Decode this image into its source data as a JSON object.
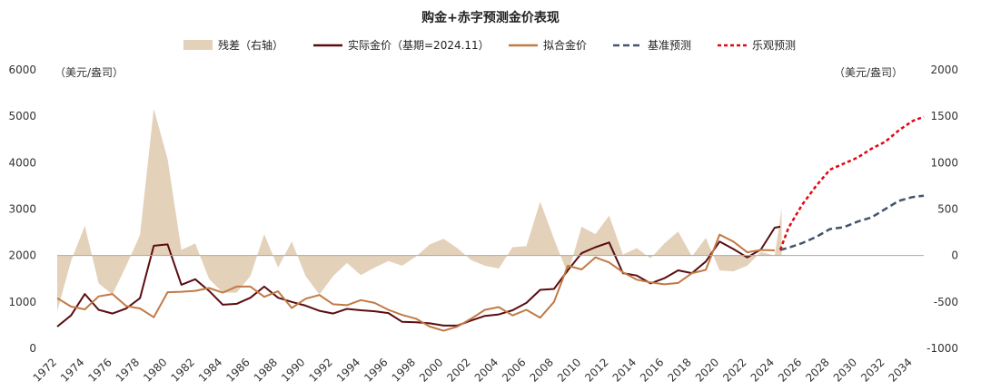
{
  "chart_data": {
    "type": "line",
    "title": "购金+赤字预测金价表现",
    "left_axis_unit": "（美元/盎司）",
    "right_axis_unit": "（美元/盎司）",
    "ylim": [
      0,
      6000
    ],
    "yticks": [
      0,
      1000,
      2000,
      3000,
      4000,
      5000,
      6000
    ],
    "y2lim": [
      -1000,
      2000
    ],
    "y2ticks": [
      -1000,
      -500,
      0,
      500,
      1000,
      1500,
      2000
    ],
    "xlim": [
      1972,
      2034.8
    ],
    "xticks": [
      "1972",
      "1974",
      "1976",
      "1978",
      "1980",
      "1982",
      "1984",
      "1986",
      "1988",
      "1990",
      "1992",
      "1994",
      "1996",
      "1998",
      "2000",
      "2002",
      "2004",
      "2006",
      "2008",
      "2010",
      "2012",
      "2014",
      "2016",
      "2018",
      "2020",
      "2022",
      "2024",
      "2026",
      "2028",
      "2030",
      "2032",
      "2034"
    ],
    "grid": false,
    "legend_position": "top",
    "series": [
      {
        "name": "残差（右轴）",
        "kind": "area",
        "axis": "right",
        "color": "#e3d1ba",
        "x": [
          1972,
          1973,
          1974,
          1975,
          1976,
          1977,
          1978,
          1979,
          1980,
          1981,
          1982,
          1983,
          1984,
          1985,
          1986,
          1987,
          1988,
          1989,
          1990,
          1991,
          1992,
          1993,
          1994,
          1995,
          1996,
          1997,
          1998,
          1999,
          2000,
          2001,
          2002,
          2003,
          2004,
          2005,
          2006,
          2007,
          2008,
          2009,
          2010,
          2011,
          2012,
          2013,
          2014,
          2015,
          2016,
          2017,
          2018,
          2019,
          2020,
          2021,
          2022,
          2023,
          2024,
          2024.5
        ],
        "values": [
          -600,
          -60,
          320,
          -300,
          -420,
          -110,
          220,
          1580,
          1040,
          60,
          130,
          -250,
          -400,
          -400,
          -220,
          230,
          -130,
          150,
          -220,
          -420,
          -220,
          -80,
          -210,
          -130,
          -60,
          -110,
          -10,
          120,
          180,
          80,
          -50,
          -110,
          -140,
          90,
          100,
          580,
          180,
          -200,
          310,
          230,
          430,
          10,
          80,
          -30,
          130,
          260,
          -10,
          190,
          -160,
          -170,
          -110,
          40,
          0,
          510
        ]
      },
      {
        "name": "实际金价（基期=2024.11）",
        "kind": "line",
        "axis": "left",
        "color": "#5a0d10",
        "dash": "solid",
        "x": [
          1972,
          1973,
          1974,
          1975,
          1976,
          1977,
          1978,
          1979,
          1980,
          1981,
          1982,
          1983,
          1984,
          1985,
          1986,
          1987,
          1988,
          1989,
          1990,
          1991,
          1992,
          1993,
          1994,
          1995,
          1996,
          1997,
          1998,
          1999,
          2000,
          2001,
          2002,
          2003,
          2004,
          2005,
          2006,
          2007,
          2008,
          2009,
          2010,
          2011,
          2012,
          2013,
          2014,
          2015,
          2016,
          2017,
          2018,
          2019,
          2020,
          2021,
          2022,
          2023,
          2024,
          2024.4
        ],
        "values": [
          470,
          710,
          1170,
          830,
          750,
          860,
          1080,
          2210,
          2240,
          1370,
          1490,
          1240,
          940,
          960,
          1090,
          1330,
          1090,
          1000,
          920,
          810,
          750,
          850,
          820,
          800,
          760,
          570,
          560,
          540,
          490,
          490,
          600,
          700,
          730,
          820,
          980,
          1260,
          1280,
          1680,
          2050,
          2180,
          2280,
          1620,
          1570,
          1400,
          1510,
          1680,
          1620,
          1870,
          2300,
          2140,
          1960,
          2130,
          2600,
          2620
        ]
      },
      {
        "name": "拟合金价",
        "kind": "line",
        "axis": "left",
        "color": "#c07a45",
        "dash": "solid",
        "x": [
          1972,
          1973,
          1974,
          1975,
          1976,
          1977,
          1978,
          1979,
          1980,
          1981,
          1982,
          1983,
          1984,
          1985,
          1986,
          1987,
          1988,
          1989,
          1990,
          1991,
          1992,
          1993,
          1994,
          1995,
          1996,
          1997,
          1998,
          1999,
          2000,
          2001,
          2002,
          2003,
          2004,
          2005,
          2006,
          2007,
          2008,
          2009,
          2010,
          2011,
          2012,
          2013,
          2014,
          2015,
          2016,
          2017,
          2018,
          2019,
          2020,
          2021,
          2022,
          2023,
          2024
        ],
        "values": [
          1080,
          900,
          840,
          1120,
          1170,
          910,
          860,
          670,
          1210,
          1220,
          1240,
          1300,
          1200,
          1330,
          1330,
          1110,
          1230,
          870,
          1070,
          1150,
          950,
          930,
          1040,
          980,
          830,
          720,
          640,
          470,
          380,
          470,
          640,
          830,
          890,
          710,
          830,
          660,
          1000,
          1780,
          1700,
          1960,
          1850,
          1640,
          1480,
          1420,
          1380,
          1410,
          1620,
          1690,
          2450,
          2300,
          2070,
          2120,
          2110
        ]
      },
      {
        "name": "基准预测",
        "kind": "line",
        "axis": "left",
        "color": "#44546a",
        "dash": "dashed",
        "x": [
          2024.4,
          2025,
          2026,
          2027,
          2028,
          2029,
          2030,
          2031,
          2032,
          2033,
          2034,
          2034.8
        ],
        "values": [
          2120,
          2170,
          2270,
          2400,
          2570,
          2610,
          2730,
          2820,
          3000,
          3180,
          3260,
          3290
        ]
      },
      {
        "name": "乐观预测",
        "kind": "line",
        "axis": "left",
        "color": "#e30613",
        "dash": "dotted",
        "x": [
          2024.4,
          2025,
          2026,
          2027,
          2028,
          2029,
          2030,
          2031,
          2032,
          2033,
          2034,
          2034.8
        ],
        "values": [
          2120,
          2600,
          3100,
          3500,
          3850,
          3980,
          4110,
          4300,
          4450,
          4700,
          4900,
          4990
        ]
      }
    ]
  }
}
